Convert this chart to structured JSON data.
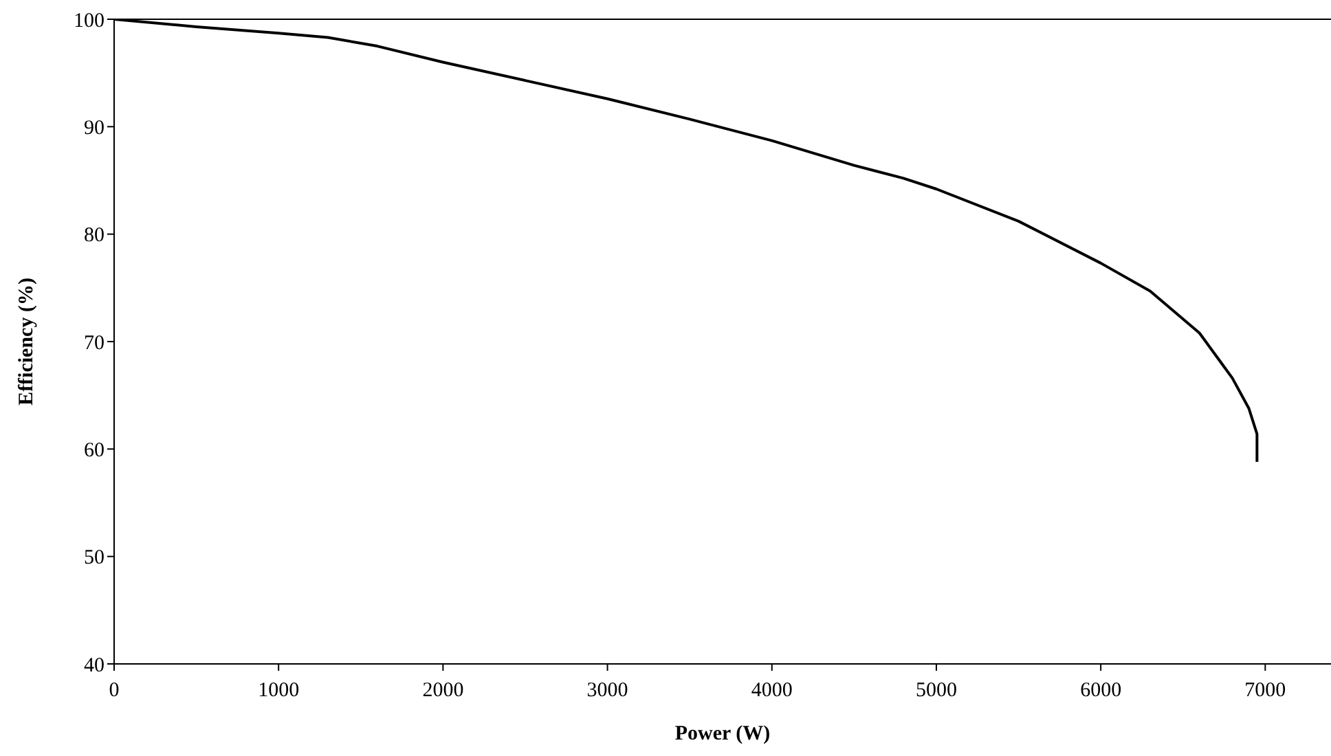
{
  "chart_data": {
    "type": "line",
    "xlabel": "Power (W)",
    "ylabel": "Efficiency (%)",
    "xlim": [
      0,
      7400
    ],
    "xticks": [
      0,
      1000,
      2000,
      3000,
      4000,
      5000,
      6000,
      7000
    ],
    "ylim": [
      40,
      100
    ],
    "yticks": [
      40,
      50,
      60,
      70,
      80,
      90,
      100
    ],
    "marker": "none",
    "line_style": "solid",
    "series": [
      {
        "color": "#000000",
        "x": [
          0,
          500,
          1000,
          1300,
          1600,
          2000,
          2500,
          3000,
          3500,
          4000,
          4500,
          4800,
          5000,
          5500,
          6000,
          6300,
          6600,
          6800,
          6900,
          6950,
          6950
        ],
        "values": [
          100,
          99.3,
          98.7,
          98.3,
          97.5,
          96,
          94.3,
          92.6,
          90.7,
          88.7,
          86.4,
          85.2,
          84.2,
          81.2,
          77.3,
          74.7,
          70.8,
          66.6,
          63.8,
          61.4,
          58.8
        ]
      }
    ]
  }
}
